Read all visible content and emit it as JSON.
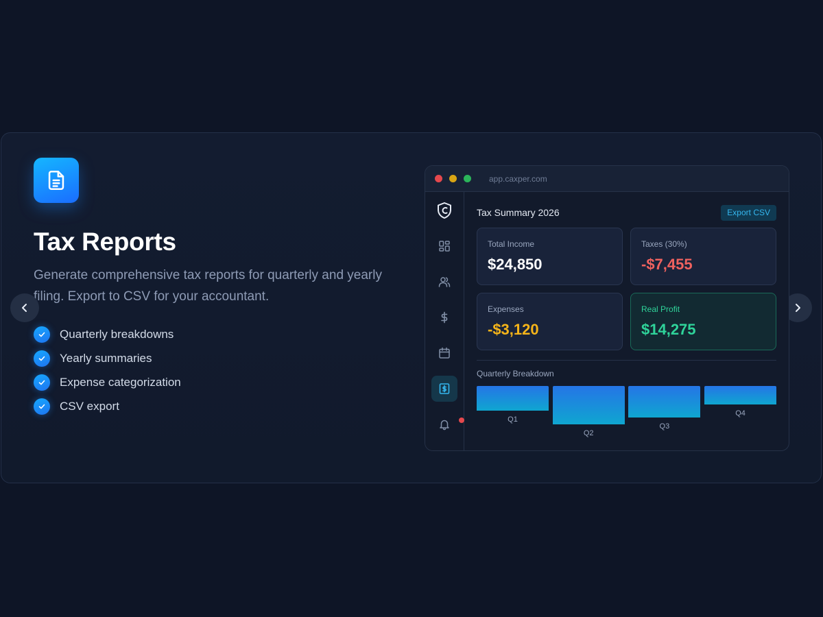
{
  "feature": {
    "icon": "document-icon",
    "title": "Tax Reports",
    "description": "Generate comprehensive tax reports for quarterly and yearly filing. Export to CSV for your accountant.",
    "items": [
      "Quarterly breakdowns",
      "Yearly summaries",
      "Expense categorization",
      "CSV export"
    ]
  },
  "carousel": {
    "prev_icon": "chevron-left-icon",
    "next_icon": "chevron-right-icon"
  },
  "app": {
    "url": "app.caxper.com",
    "sidebar": [
      "logo-icon",
      "dashboard-icon",
      "users-icon",
      "dollar-icon",
      "calendar-icon",
      "tax-report-icon",
      "bell-icon"
    ],
    "summary_title": "Tax Summary 2026",
    "export_label": "Export CSV",
    "cards": [
      {
        "label": "Total Income",
        "value": "$24,850",
        "color": "#ffffff"
      },
      {
        "label": "Taxes (30%)",
        "value": "-$7,455",
        "color": "#f0625f"
      },
      {
        "label": "Expenses",
        "value": "-$3,120",
        "color": "#f5b419"
      },
      {
        "label": "Real Profit",
        "value": "$14,275",
        "color": "#2fd49a"
      }
    ],
    "quarterly_label": "Quarterly Breakdown"
  },
  "chart_data": {
    "type": "bar",
    "categories": [
      "Q1",
      "Q2",
      "Q3",
      "Q4"
    ],
    "values": [
      0.65,
      1.0,
      0.82,
      0.49
    ]
  },
  "colors": {
    "accent": "#1a8cff",
    "profit": "#2fd49a",
    "tax": "#f0625f",
    "expense": "#f5b419"
  }
}
